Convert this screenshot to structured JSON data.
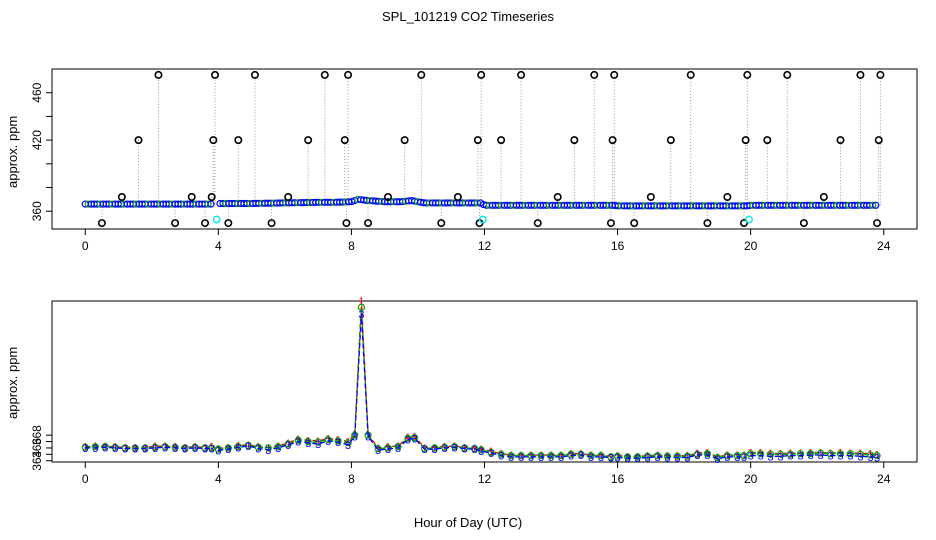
{
  "figure": {
    "title": "SPL_101219  CO2 Timeseries",
    "xlabel": "Hour of Day (UTC)"
  },
  "chart_data": [
    {
      "type": "scatter",
      "name": "top-panel",
      "xlabel": "Hour of Day (UTC)",
      "ylabel": "approx. ppm",
      "xlim": [
        -1,
        25
      ],
      "ylim": [
        345,
        480
      ],
      "xticks": [
        0,
        4,
        8,
        12,
        16,
        20,
        24
      ],
      "yticks": [
        360,
        380,
        400,
        420,
        440,
        460
      ],
      "ytick_labels": [
        "360",
        "",
        "",
        "420",
        "",
        "460"
      ],
      "grid": false,
      "baseline": {
        "x": [
          0,
          3.8,
          4.0,
          5,
          6,
          7,
          7.5,
          8,
          8.2,
          8.5,
          9,
          9.5,
          9.8,
          10.2,
          11,
          11.9,
          12.0,
          13,
          14,
          15,
          15.9,
          16.0,
          17,
          18,
          19,
          19.9,
          20.0,
          21,
          22,
          23,
          23.8
        ],
        "values": [
          366,
          366,
          366.5,
          366.5,
          367,
          367.5,
          367.5,
          368,
          370,
          369,
          368,
          368,
          369,
          367,
          367,
          367,
          365,
          365,
          365,
          365,
          365,
          364.5,
          364.5,
          364.5,
          364.5,
          364.5,
          365,
          365,
          365,
          365,
          365
        ],
        "color": "#0000ff"
      },
      "spikes": {
        "x": [
          0.5,
          1.1,
          1.6,
          2.2,
          2.7,
          3.2,
          3.6,
          3.8,
          3.85,
          3.9,
          4.3,
          4.6,
          5.1,
          5.6,
          6.1,
          6.7,
          7.2,
          7.8,
          7.85,
          7.9,
          8.5,
          9.1,
          9.6,
          10.1,
          10.7,
          11.2,
          11.8,
          11.85,
          11.9,
          12.5,
          13.1,
          13.6,
          14.2,
          14.7,
          15.3,
          15.8,
          15.85,
          15.9,
          16.5,
          17.0,
          17.6,
          18.2,
          18.7,
          19.3,
          19.8,
          19.85,
          19.9,
          20.5,
          21.1,
          21.6,
          22.2,
          22.7,
          23.3,
          23.8,
          23.85,
          23.9
        ],
        "values": [
          350,
          372,
          420,
          475,
          350,
          372,
          350,
          372,
          420,
          475,
          350,
          420,
          475,
          350,
          372,
          420,
          475,
          420,
          350,
          475,
          350,
          372,
          420,
          475,
          350,
          372,
          420,
          350,
          475,
          420,
          475,
          350,
          372,
          420,
          475,
          350,
          420,
          475,
          350,
          372,
          420,
          475,
          350,
          372,
          350,
          420,
          475,
          420,
          475,
          350,
          372,
          420,
          475,
          350,
          420,
          475
        ],
        "color": "#000000"
      },
      "cyan_markers": {
        "x": [
          3.95,
          11.95,
          19.95
        ],
        "values": [
          353,
          353,
          353
        ],
        "color": "#00e5ee"
      }
    },
    {
      "type": "line",
      "name": "bottom-panel",
      "xlabel": "Hour of Day (UTC)",
      "ylabel": "approx. ppm",
      "xlim": [
        -1,
        25
      ],
      "ylim": [
        363.8,
        389.0
      ],
      "xticks": [
        0,
        4,
        8,
        12,
        16,
        20,
        24
      ],
      "yticks": [
        364,
        365,
        366,
        367,
        368
      ],
      "ytick_labels": [
        "364",
        "",
        "366",
        "",
        "368"
      ],
      "grid": false,
      "x": [
        0,
        0.3,
        0.6,
        0.9,
        1.2,
        1.5,
        1.8,
        2.1,
        2.4,
        2.7,
        3.0,
        3.3,
        3.6,
        3.8,
        null,
        4.0,
        4.3,
        4.6,
        4.9,
        5.2,
        5.5,
        5.8,
        6.1,
        6.4,
        6.7,
        7.0,
        7.3,
        7.6,
        7.9,
        8.1,
        8.3,
        8.5,
        8.8,
        9.1,
        9.4,
        9.7,
        9.9,
        10.2,
        10.5,
        10.8,
        11.1,
        11.4,
        11.7,
        11.9,
        12.2,
        12.5,
        12.8,
        13.1,
        13.4,
        13.7,
        14.0,
        14.3,
        14.6,
        14.9,
        15.2,
        15.5,
        15.8,
        null,
        16.0,
        16.3,
        16.6,
        16.9,
        17.2,
        17.5,
        17.8,
        18.1,
        18.4,
        18.7,
        19.0,
        19.3,
        19.6,
        19.8,
        null,
        20.0,
        20.3,
        20.6,
        20.9,
        21.2,
        21.5,
        21.8,
        22.1,
        22.4,
        22.7,
        23.0,
        23.3,
        23.6,
        23.8
      ],
      "series": [
        {
          "name": "1",
          "marker": "1",
          "color": "#ff0000",
          "values": [
            366.2,
            366.3,
            366.3,
            366.2,
            366.1,
            366.1,
            366.1,
            366.3,
            366.3,
            366.2,
            366.1,
            366.2,
            366.1,
            366.2,
            null,
            365.9,
            366.1,
            366.4,
            366.5,
            366.2,
            366.1,
            366.3,
            366.8,
            367.4,
            367.2,
            367.1,
            367.5,
            367.3,
            367.0,
            368.2,
            389.0,
            368.2,
            366.0,
            366.2,
            366.3,
            367.7,
            367.8,
            366.0,
            366.1,
            366.2,
            366.3,
            366.1,
            366.0,
            365.8,
            365.5,
            365.1,
            364.9,
            364.9,
            364.9,
            364.9,
            364.9,
            364.9,
            365.1,
            365.1,
            364.9,
            364.9,
            364.7,
            null,
            364.8,
            364.7,
            364.7,
            364.8,
            364.9,
            364.8,
            364.8,
            364.8,
            365.2,
            365.3,
            364.6,
            364.9,
            364.9,
            364.9,
            null,
            365.3,
            365.3,
            365.2,
            365.1,
            365.2,
            365.2,
            365.3,
            365.3,
            365.2,
            365.3,
            365.2,
            365.2,
            365.1,
            365.0
          ]
        },
        {
          "name": "2",
          "marker": "o",
          "color": "#00aa00",
          "values": [
            366.1,
            366.2,
            366.2,
            366.1,
            366.0,
            366.0,
            366.0,
            366.1,
            366.2,
            366.1,
            366.0,
            366.1,
            366.0,
            366.0,
            null,
            365.8,
            366.0,
            366.2,
            366.4,
            366.1,
            366.0,
            366.2,
            366.6,
            367.2,
            367.0,
            366.9,
            367.3,
            367.1,
            366.8,
            368.0,
            388.0,
            368.0,
            365.9,
            366.0,
            366.2,
            367.5,
            367.6,
            365.9,
            366.0,
            366.1,
            366.2,
            366.0,
            365.9,
            365.7,
            365.3,
            365.0,
            364.8,
            364.8,
            364.8,
            364.8,
            364.8,
            364.8,
            365.0,
            365.0,
            364.8,
            364.8,
            364.6,
            null,
            364.7,
            364.6,
            364.6,
            364.7,
            364.8,
            364.7,
            364.7,
            364.7,
            365.0,
            365.1,
            364.5,
            364.8,
            364.8,
            364.8,
            null,
            365.1,
            365.1,
            365.0,
            365.0,
            365.0,
            365.1,
            365.1,
            365.2,
            365.1,
            365.1,
            365.1,
            365.0,
            364.9,
            364.8
          ]
        },
        {
          "name": "3",
          "marker": "3",
          "color": "#0000ff",
          "values": [
            366.0,
            366.0,
            366.1,
            366.0,
            365.9,
            365.9,
            365.9,
            366.0,
            366.1,
            366.0,
            365.9,
            366.0,
            365.9,
            365.9,
            null,
            365.6,
            365.8,
            366.1,
            366.3,
            365.9,
            365.7,
            366.0,
            366.5,
            367.0,
            366.8,
            366.6,
            367.1,
            366.9,
            366.5,
            367.8,
            387.0,
            367.8,
            365.7,
            365.8,
            366.0,
            367.3,
            367.5,
            365.8,
            365.8,
            366.0,
            366.1,
            365.9,
            365.8,
            365.5,
            365.2,
            364.8,
            364.6,
            364.6,
            364.6,
            364.6,
            364.6,
            364.6,
            364.8,
            364.9,
            364.6,
            364.6,
            364.5,
            null,
            364.5,
            364.4,
            364.4,
            364.5,
            364.6,
            364.5,
            364.5,
            364.5,
            364.9,
            364.9,
            364.3,
            364.6,
            364.6,
            364.6,
            null,
            364.8,
            364.8,
            364.7,
            364.7,
            364.8,
            364.8,
            364.9,
            364.9,
            364.8,
            364.8,
            364.8,
            364.7,
            364.6,
            364.5
          ]
        }
      ]
    }
  ]
}
